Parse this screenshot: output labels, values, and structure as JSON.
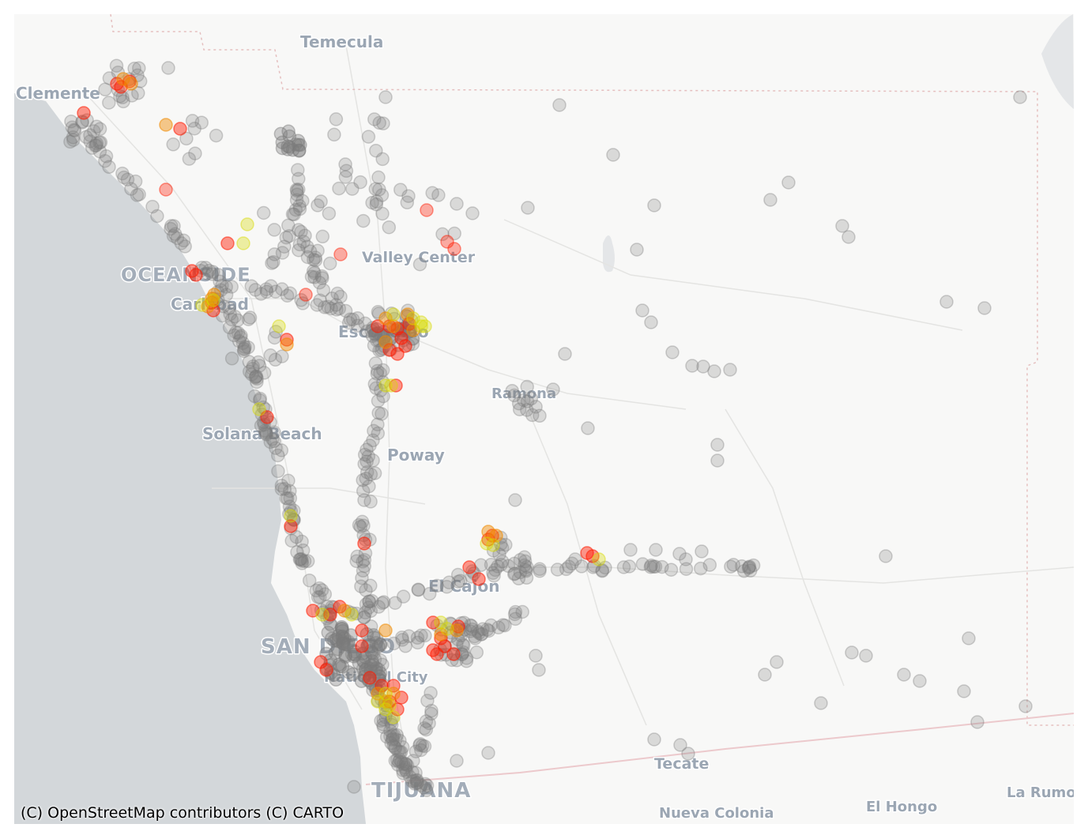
{
  "map": {
    "basemap_style": "light",
    "colors": {
      "land": "#f8f8f7",
      "ocean": "#d3d7da",
      "county_boundary": "#e5bfbf",
      "border": "#ecc9cc",
      "road": "#e4e4e2",
      "point_gray": "#7a7a7a",
      "point_yellow": "#d6d900",
      "point_orange": "#f08a00",
      "point_red": "#ff1a00"
    },
    "place_labels": [
      {
        "name": "Temecula"
      },
      {
        "name": "Clemente"
      },
      {
        "name": "OCEANSIDE"
      },
      {
        "name": "Carlsbad"
      },
      {
        "name": "Valley Center"
      },
      {
        "name": "Escondido"
      },
      {
        "name": "Ramona"
      },
      {
        "name": "Solana Beach"
      },
      {
        "name": "Poway"
      },
      {
        "name": "El Cajon"
      },
      {
        "name": "SAN DIEGO"
      },
      {
        "name": "National City"
      },
      {
        "name": "Tecate"
      },
      {
        "name": "TIJUANA"
      },
      {
        "name": "Nueva Colonia"
      },
      {
        "name": "El Hongo"
      },
      {
        "name": "La Rumorosa"
      }
    ],
    "attribution": "(C) OpenStreetMap contributors (C) CARTO"
  }
}
